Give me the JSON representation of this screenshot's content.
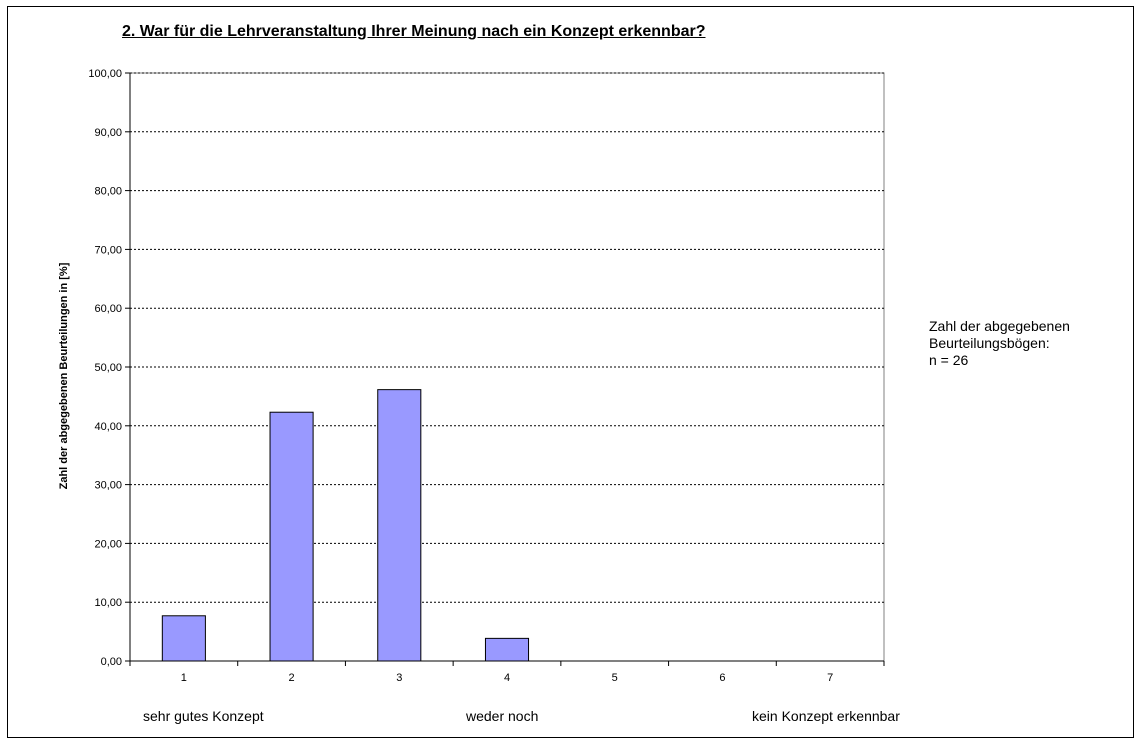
{
  "chart_data": {
    "type": "bar",
    "title": "2. War für die Lehrveranstaltung Ihrer Meinung nach ein Konzept erkennbar?",
    "xlabel": "",
    "ylabel": "Zahl der abgegebenen Beurteilungen in [%]",
    "categories": [
      "1",
      "2",
      "3",
      "4",
      "5",
      "6",
      "7"
    ],
    "values": [
      7.69,
      42.31,
      46.15,
      3.85,
      0,
      0,
      0
    ],
    "ylim": [
      0,
      100
    ],
    "yticks": [
      "0,00",
      "10,00",
      "20,00",
      "30,00",
      "40,00",
      "50,00",
      "60,00",
      "70,00",
      "80,00",
      "90,00",
      "100,00"
    ],
    "grid": true,
    "bar_color": "#9999ff",
    "scale_labels": {
      "left": "sehr gutes Konzept",
      "middle": "weder noch",
      "right": "kein Konzept erkennbar"
    },
    "note": [
      "Zahl der abgegebenen",
      "Beurteilungsbögen:",
      "n = 26"
    ]
  }
}
